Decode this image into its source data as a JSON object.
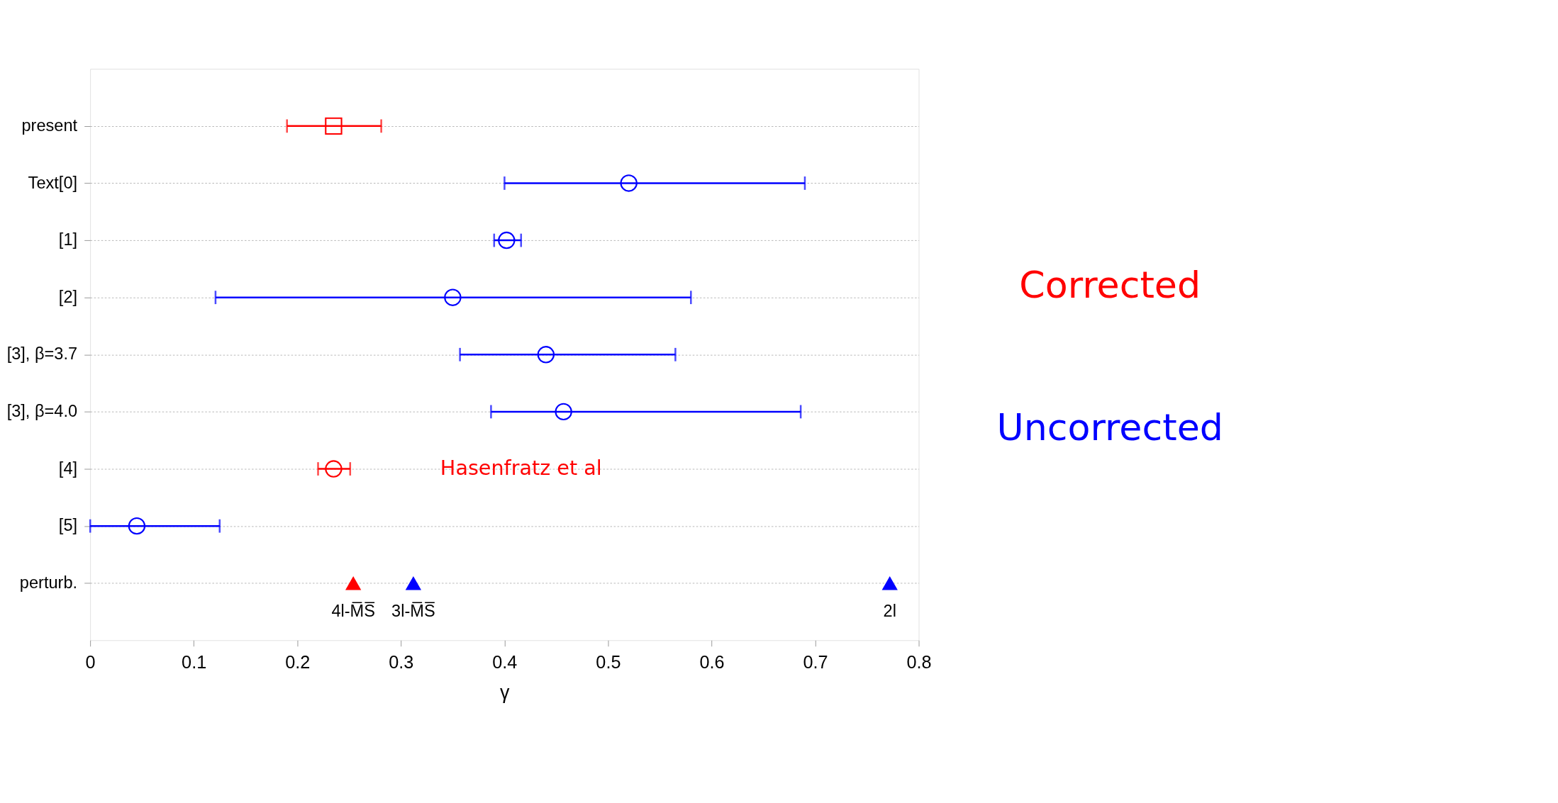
{
  "chart_data": {
    "type": "scatter",
    "orientation": "horizontal",
    "xlabel": "γ",
    "categories": [
      "present",
      "Text[0]",
      "[1]",
      "[2]",
      "[3], β=3.7",
      "[3], β=4.0",
      "[4]",
      "[5]",
      "perturb."
    ],
    "xlim": [
      0,
      0.8
    ],
    "xticks": [
      0,
      0.1,
      0.2,
      0.3,
      0.4,
      0.5,
      0.6,
      0.7,
      0.8
    ],
    "grid": "y",
    "series": [
      {
        "color": "#ff0000",
        "marker": "square",
        "values": [
          0.235,
          null,
          null,
          null,
          null,
          null,
          null,
          null,
          null
        ],
        "errors": [
          [
            0.19,
            0.281
          ],
          null,
          null,
          null,
          null,
          null,
          null,
          null,
          null
        ]
      },
      {
        "color": "#0000ff",
        "marker": "circle",
        "values": [
          null,
          0.52,
          0.402,
          0.35,
          0.44,
          0.457,
          null,
          0.045,
          null
        ],
        "errors": [
          null,
          [
            0.4,
            0.69
          ],
          [
            0.39,
            0.416
          ],
          [
            0.121,
            0.58
          ],
          [
            0.357,
            0.565
          ],
          [
            0.387,
            0.686
          ],
          null,
          [
            0,
            0.125
          ],
          null
        ]
      },
      {
        "color": "#ff0000",
        "marker": "circle",
        "values": [
          null,
          null,
          null,
          null,
          null,
          null,
          0.235,
          null,
          null
        ],
        "errors": [
          null,
          null,
          null,
          null,
          null,
          null,
          [
            0.22,
            0.251
          ],
          null,
          null
        ]
      },
      {
        "color": "#ff0000",
        "marker": "triangle",
        "values": [
          null,
          null,
          null,
          null,
          null,
          null,
          null,
          null,
          0.254
        ]
      },
      {
        "color": "#0000ff",
        "marker": "triangle",
        "values": [
          null,
          null,
          null,
          null,
          null,
          null,
          null,
          null,
          0.312
        ]
      },
      {
        "color": "#0000ff",
        "marker": "triangle",
        "values": [
          null,
          null,
          null,
          null,
          null,
          null,
          null,
          null,
          0.772
        ]
      }
    ],
    "annotations": [
      "Hasenfratz et al",
      {
        "text": "4l-M̅S̅",
        "x": 0.254,
        "y": "perturb."
      },
      {
        "text": "3l-M̅S̅",
        "x": 0.312,
        "y": "perturb."
      },
      {
        "text": "2l",
        "x": 0.772,
        "y": "perturb."
      },
      "Corrected",
      "Uncorrected"
    ]
  }
}
